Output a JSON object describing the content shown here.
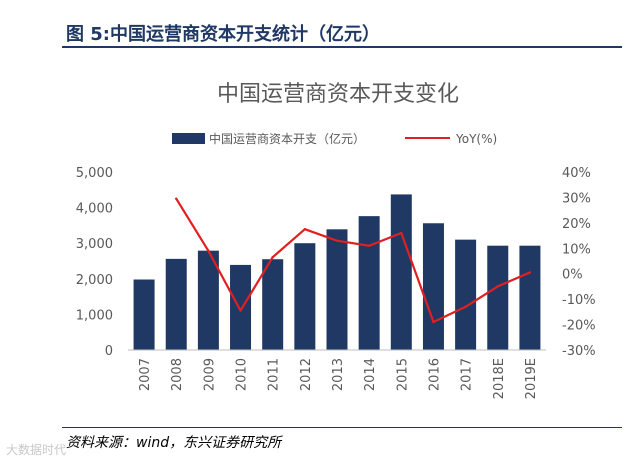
{
  "figure": {
    "label": "图 5:中国运营商资本开支统计（亿元）",
    "source": "资料来源：wind，东兴证券研究所",
    "watermark": "大数据时代"
  },
  "colors": {
    "bar": "#1f3864",
    "line": "#e02020",
    "header": "#1f3864",
    "axis_text": "#595959"
  },
  "chart_data": {
    "type": "bar",
    "title": "中国运营商资本开支变化",
    "categories": [
      "2007",
      "2008",
      "2009",
      "2010",
      "2011",
      "2012",
      "2013",
      "2014",
      "2015",
      "2016",
      "2017",
      "2018E",
      "2019E"
    ],
    "series": [
      {
        "name": "中国运营商资本开支（亿元）",
        "type": "bar",
        "axis": "left",
        "values": [
          1980,
          2560,
          2790,
          2390,
          2550,
          3000,
          3390,
          3760,
          4370,
          3560,
          3100,
          2930,
          2930
        ]
      },
      {
        "name": "YoY(%)",
        "type": "line",
        "axis": "right",
        "values": [
          null,
          29.5,
          9,
          -14.5,
          6.5,
          17.5,
          13,
          11,
          16,
          -19,
          -13,
          -5,
          0.5
        ]
      }
    ],
    "y_left": {
      "min": 0,
      "max": 5000,
      "ticks": [
        "0",
        "1,000",
        "2,000",
        "3,000",
        "4,000",
        "5,000"
      ]
    },
    "y_right": {
      "min": -30,
      "max": 40,
      "ticks": [
        "-30%",
        "-20%",
        "-10%",
        "0%",
        "10%",
        "20%",
        "30%",
        "40%"
      ]
    },
    "legend_position": "top",
    "grid": false
  }
}
